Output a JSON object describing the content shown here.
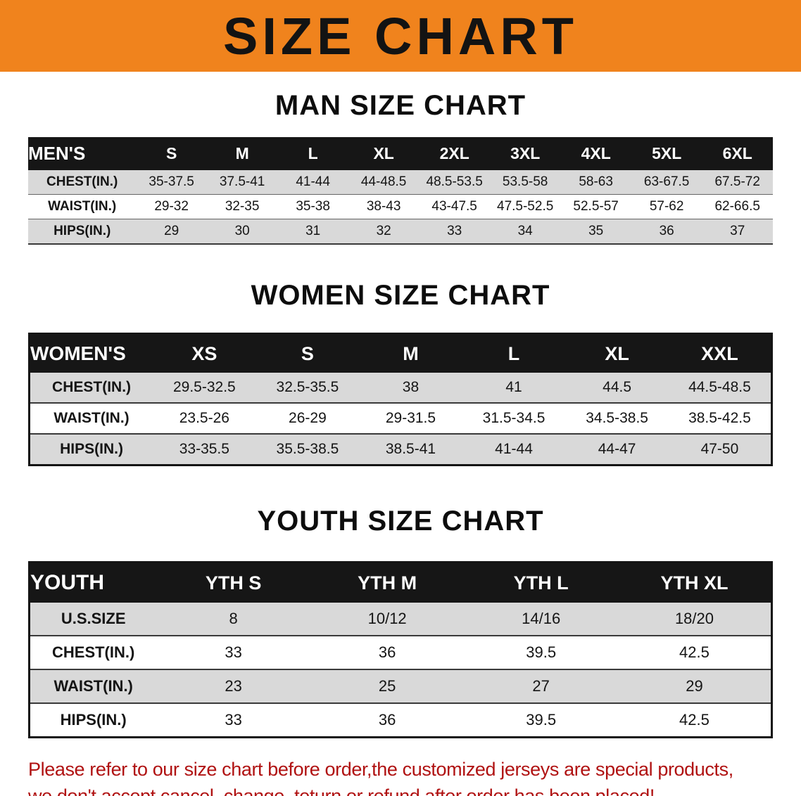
{
  "banner": {
    "title": "SIZE CHART"
  },
  "colors": {
    "banner_bg": "#F0831D",
    "table_header_bg": "#161616",
    "alt_row_bg": "#D9D9D9",
    "note_red": "#B01212"
  },
  "men": {
    "section_title": "MAN SIZE CHART",
    "header": [
      "MEN'S",
      "S",
      "M",
      "L",
      "XL",
      "2XL",
      "3XL",
      "4XL",
      "5XL",
      "6XL"
    ],
    "rows": [
      {
        "label": "CHEST(IN.)",
        "cells": [
          "35-37.5",
          "37.5-41",
          "41-44",
          "44-48.5",
          "48.5-53.5",
          "53.5-58",
          "58-63",
          "63-67.5",
          "67.5-72"
        ]
      },
      {
        "label": "WAIST(IN.)",
        "cells": [
          "29-32",
          "32-35",
          "35-38",
          "38-43",
          "43-47.5",
          "47.5-52.5",
          "52.5-57",
          "57-62",
          "62-66.5"
        ]
      },
      {
        "label": "HIPS(IN.)",
        "cells": [
          "29",
          "30",
          "31",
          "32",
          "33",
          "34",
          "35",
          "36",
          "37"
        ]
      }
    ]
  },
  "women": {
    "section_title": "WOMEN SIZE CHART",
    "header": [
      "WOMEN'S",
      "XS",
      "S",
      "M",
      "L",
      "XL",
      "XXL"
    ],
    "rows": [
      {
        "label": "CHEST(IN.)",
        "cells": [
          "29.5-32.5",
          "32.5-35.5",
          "38",
          "41",
          "44.5",
          "44.5-48.5"
        ]
      },
      {
        "label": "WAIST(IN.)",
        "cells": [
          "23.5-26",
          "26-29",
          "29-31.5",
          "31.5-34.5",
          "34.5-38.5",
          "38.5-42.5"
        ]
      },
      {
        "label": "HIPS(IN.)",
        "cells": [
          "33-35.5",
          "35.5-38.5",
          "38.5-41",
          "41-44",
          "44-47",
          "47-50"
        ]
      }
    ]
  },
  "youth": {
    "section_title": "YOUTH SIZE CHART",
    "header": [
      "YOUTH",
      "YTH S",
      "YTH M",
      "YTH L",
      "YTH XL"
    ],
    "rows": [
      {
        "label": "U.S.SIZE",
        "cells": [
          "8",
          "10/12",
          "14/16",
          "18/20"
        ]
      },
      {
        "label": "CHEST(IN.)",
        "cells": [
          "33",
          "36",
          "39.5",
          "42.5"
        ]
      },
      {
        "label": "WAIST(IN.)",
        "cells": [
          "23",
          "25",
          "27",
          "29"
        ]
      },
      {
        "label": "HIPS(IN.)",
        "cells": [
          "33",
          "36",
          "39.5",
          "42.5"
        ]
      }
    ]
  },
  "note": {
    "line1": "Please refer to our size chart before order,the customized jerseys are special products,",
    "line2": "we don't accept cancel, change, teturn or refund after order has been placed!"
  }
}
